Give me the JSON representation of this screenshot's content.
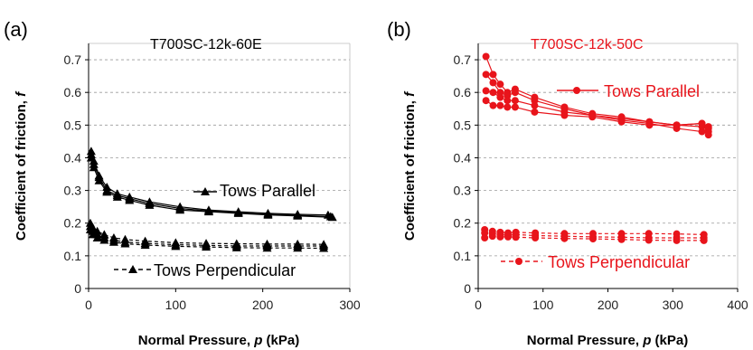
{
  "chart_data": [
    {
      "panel_label": "(a)",
      "type": "line",
      "title": "T700SC-12k-60E",
      "xlabel": "Normal Pressure, p (kPa)",
      "xlabel_parts": [
        "Normal Pressure, ",
        "p",
        " (kPa)"
      ],
      "ylabel": "Coefficient of friction, f",
      "ylabel_parts": [
        "Coefficient of friction, ",
        "f"
      ],
      "xlim": [
        0,
        300
      ],
      "ylim": [
        0,
        0.75
      ],
      "xticks": [
        0,
        100,
        200,
        300
      ],
      "yticks": [
        0,
        0.1,
        0.2,
        0.3,
        0.4,
        0.5,
        0.6,
        0.7
      ],
      "grid": "horizontal dashed",
      "color": "#000000",
      "marker": "triangle",
      "series": [
        {
          "group": "Tows Parallel",
          "style": "solid",
          "x": [
            3,
            6,
            12,
            21,
            33,
            47,
            70,
            105,
            138,
            172,
            206,
            240,
            275
          ],
          "y": [
            0.42,
            0.39,
            0.345,
            0.31,
            0.29,
            0.28,
            0.265,
            0.25,
            0.24,
            0.235,
            0.23,
            0.227,
            0.225
          ]
        },
        {
          "group": "Tows Parallel",
          "style": "solid",
          "x": [
            3,
            6,
            12,
            21,
            33,
            47,
            70,
            105,
            138,
            172,
            206,
            240,
            278
          ],
          "y": [
            0.41,
            0.38,
            0.34,
            0.3,
            0.285,
            0.275,
            0.26,
            0.245,
            0.237,
            0.232,
            0.227,
            0.224,
            0.22
          ]
        },
        {
          "group": "Tows Parallel",
          "style": "solid",
          "x": [
            3,
            6,
            12,
            21,
            33,
            47,
            70,
            105,
            138,
            172,
            206,
            240,
            280
          ],
          "y": [
            0.4,
            0.37,
            0.33,
            0.295,
            0.28,
            0.27,
            0.255,
            0.24,
            0.235,
            0.23,
            0.225,
            0.222,
            0.218
          ]
        },
        {
          "group": "Tows Perpendicular",
          "style": "dashed",
          "x": [
            2,
            5,
            10,
            18,
            29,
            42,
            65,
            100,
            135,
            170,
            205,
            240,
            270
          ],
          "y": [
            0.2,
            0.185,
            0.175,
            0.165,
            0.155,
            0.15,
            0.145,
            0.14,
            0.138,
            0.137,
            0.136,
            0.136,
            0.135
          ]
        },
        {
          "group": "Tows Perpendicular",
          "style": "dashed",
          "x": [
            2,
            5,
            10,
            18,
            29,
            42,
            65,
            100,
            135,
            170,
            205,
            240,
            270
          ],
          "y": [
            0.19,
            0.175,
            0.165,
            0.155,
            0.148,
            0.142,
            0.138,
            0.134,
            0.132,
            0.13,
            0.13,
            0.13,
            0.13
          ]
        },
        {
          "group": "Tows Perpendicular",
          "style": "dashed",
          "x": [
            2,
            5,
            10,
            18,
            29,
            42,
            65,
            100,
            135,
            170,
            205,
            240,
            270
          ],
          "y": [
            0.18,
            0.165,
            0.155,
            0.148,
            0.142,
            0.137,
            0.133,
            0.129,
            0.127,
            0.125,
            0.124,
            0.124,
            0.123
          ]
        }
      ],
      "legend": [
        {
          "label": "Tows Parallel",
          "style": "solid"
        },
        {
          "label": "Tows Perpendicular",
          "style": "dashed"
        }
      ]
    },
    {
      "panel_label": "(b)",
      "type": "line",
      "title": "T700SC-12k-50C",
      "xlabel": "Normal Pressure, p (kPa)",
      "xlabel_parts": [
        "Normal Pressure, ",
        "p",
        " (kPa)"
      ],
      "ylabel": "Coefficient of friction, f",
      "ylabel_parts": [
        "Coefficient of friction, ",
        "f"
      ],
      "xlim": [
        0,
        400
      ],
      "ylim": [
        0,
        0.75
      ],
      "xticks": [
        0,
        100,
        200,
        300,
        400
      ],
      "yticks": [
        0,
        0.1,
        0.2,
        0.3,
        0.4,
        0.5,
        0.6,
        0.7
      ],
      "grid": "horizontal dashed",
      "color": "#e8141b",
      "marker": "circle",
      "series": [
        {
          "group": "Tows Parallel",
          "style": "solid",
          "x": [
            12,
            23,
            34,
            45,
            57,
            87,
            133,
            176,
            221,
            264,
            306,
            345,
            355
          ],
          "y": [
            0.71,
            0.655,
            0.625,
            0.6,
            0.61,
            0.585,
            0.555,
            0.535,
            0.525,
            0.51,
            0.5,
            0.495,
            0.47
          ]
        },
        {
          "group": "Tows Parallel",
          "style": "solid",
          "x": [
            12,
            23,
            34,
            45,
            57,
            87,
            133,
            176,
            221,
            264,
            306,
            345,
            355
          ],
          "y": [
            0.655,
            0.63,
            0.6,
            0.59,
            0.6,
            0.575,
            0.55,
            0.53,
            0.515,
            0.505,
            0.49,
            0.48,
            0.48
          ]
        },
        {
          "group": "Tows Parallel",
          "style": "solid",
          "x": [
            12,
            23,
            34,
            45,
            57,
            87,
            133,
            176,
            221,
            264,
            306,
            345,
            355
          ],
          "y": [
            0.605,
            0.6,
            0.585,
            0.575,
            0.575,
            0.56,
            0.54,
            0.53,
            0.52,
            0.51,
            0.5,
            0.505,
            0.49
          ]
        },
        {
          "group": "Tows Parallel",
          "style": "solid",
          "x": [
            12,
            23,
            34,
            45,
            57,
            87,
            133,
            176,
            221,
            264,
            306,
            345,
            355
          ],
          "y": [
            0.575,
            0.56,
            0.56,
            0.555,
            0.555,
            0.54,
            0.53,
            0.525,
            0.51,
            0.5,
            0.5,
            0.505,
            0.495
          ]
        },
        {
          "group": "Tows Perpendicular",
          "style": "dashed",
          "x": [
            10,
            22,
            34,
            46,
            58,
            88,
            133,
            177,
            221,
            263,
            306,
            348
          ],
          "y": [
            0.18,
            0.175,
            0.172,
            0.17,
            0.172,
            0.17,
            0.168,
            0.168,
            0.168,
            0.168,
            0.167,
            0.165
          ]
        },
        {
          "group": "Tows Perpendicular",
          "style": "dashed",
          "x": [
            10,
            22,
            34,
            46,
            58,
            88,
            133,
            177,
            221,
            263,
            306,
            348
          ],
          "y": [
            0.17,
            0.168,
            0.165,
            0.163,
            0.165,
            0.162,
            0.16,
            0.158,
            0.157,
            0.155,
            0.155,
            0.155
          ]
        },
        {
          "group": "Tows Perpendicular",
          "style": "dashed",
          "x": [
            10,
            22,
            34,
            46,
            58,
            88,
            133,
            177,
            221,
            263,
            306,
            348
          ],
          "y": [
            0.155,
            0.16,
            0.158,
            0.158,
            0.157,
            0.155,
            0.153,
            0.152,
            0.15,
            0.148,
            0.147,
            0.147
          ]
        }
      ],
      "legend": [
        {
          "label": "Tows Parallel",
          "style": "solid"
        },
        {
          "label": "Tows Perpendicular",
          "style": "dashed"
        }
      ]
    }
  ]
}
